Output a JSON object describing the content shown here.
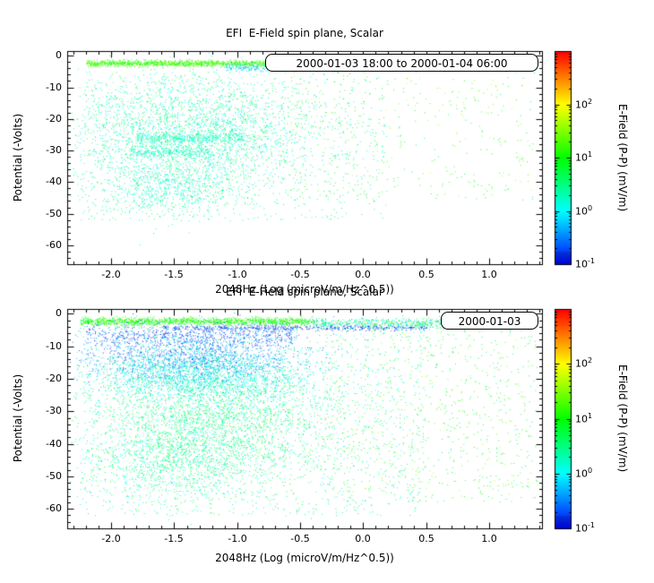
{
  "figure": {
    "background": "#ffffff",
    "note": "Two stacked scatter (density) plots of spacecraft potential vs wave power, rainbow log color scale; point clouds approximated by density clusters."
  },
  "chart_data": [
    {
      "type": "scatter",
      "title": "EFI  E-Field spin plane, Scalar",
      "legend": "2000-01-03 18:00 to 2000-01-04 06:00",
      "xlabel": "2048Hz (Log (microV/m/Hz^0.5))",
      "ylabel": "Potential (-Volts)",
      "xlim": [
        -2.35,
        1.42
      ],
      "ylim": [
        -66,
        1.5
      ],
      "xticks": [
        {
          "v": -2.0,
          "label": "-2.0"
        },
        {
          "v": -1.5,
          "label": "-1.5"
        },
        {
          "v": -1.0,
          "label": "-1.0"
        },
        {
          "v": -0.5,
          "label": "-0.5"
        },
        {
          "v": 0.0,
          "label": "0.0"
        },
        {
          "v": 0.5,
          "label": "0.5"
        },
        {
          "v": 1.0,
          "label": "1.0"
        }
      ],
      "yticks": [
        {
          "v": 0,
          "label": "0"
        },
        {
          "v": -10,
          "label": "-10"
        },
        {
          "v": -20,
          "label": "-20"
        },
        {
          "v": -30,
          "label": "-30"
        },
        {
          "v": -40,
          "label": "-40"
        },
        {
          "v": -50,
          "label": "-50"
        },
        {
          "v": -60,
          "label": "-60"
        }
      ],
      "colorbar": {
        "label": "E-Field (P-P) (mV/m)",
        "scale": "log",
        "log_range": [
          -1,
          3
        ],
        "ticks": [
          {
            "logv": 2,
            "base": "10",
            "exp": "2"
          },
          {
            "logv": 1,
            "base": "10",
            "exp": "1"
          },
          {
            "logv": 0,
            "base": "10",
            "exp": "0"
          },
          {
            "logv": -1,
            "base": "10",
            "exp": "-1"
          }
        ]
      },
      "clusters": [
        {
          "n": 1200,
          "x": {
            "d": "u",
            "a": -2.2,
            "b": -0.75
          },
          "y": {
            "d": "g",
            "m": -2.3,
            "s": 0.5
          },
          "lv": [
            0.8,
            1.6
          ]
        },
        {
          "n": 900,
          "x": {
            "d": "u",
            "a": -1.1,
            "b": 1.38
          },
          "y": {
            "d": "g",
            "m": -3.6,
            "s": 0.6
          },
          "lv": [
            -0.5,
            0.2
          ]
        },
        {
          "n": 2600,
          "x": {
            "d": "g",
            "m": -1.35,
            "s": 0.5
          },
          "y": {
            "d": "g",
            "m": -24,
            "s": 9
          },
          "lv": [
            -0.2,
            0.8
          ]
        },
        {
          "n": 350,
          "x": {
            "d": "u",
            "a": -1.8,
            "b": -0.95
          },
          "y": {
            "d": "g",
            "m": -26,
            "s": 0.8
          },
          "lv": [
            0.0,
            0.5
          ]
        },
        {
          "n": 250,
          "x": {
            "d": "u",
            "a": -1.85,
            "b": -1.2
          },
          "y": {
            "d": "g",
            "m": -30.5,
            "s": 0.8
          },
          "lv": [
            0.0,
            0.5
          ]
        },
        {
          "n": 700,
          "x": {
            "d": "g",
            "m": -1.55,
            "s": 0.28
          },
          "y": {
            "d": "g",
            "m": -42,
            "s": 4.5
          },
          "lv": [
            -0.1,
            0.6
          ]
        },
        {
          "n": 350,
          "x": {
            "d": "u",
            "a": -0.6,
            "b": 1.35
          },
          "y": {
            "d": "u",
            "a": -46,
            "b": -6
          },
          "lv": [
            0.5,
            1.8
          ]
        },
        {
          "n": 900,
          "x": {
            "d": "u",
            "a": -2.25,
            "b": 0.2
          },
          "y": {
            "d": "u",
            "a": -52,
            "b": -5
          },
          "lv": [
            0.0,
            0.9
          ]
        }
      ]
    },
    {
      "type": "scatter",
      "title": "EFI  E-Field spin plane, Scalar",
      "legend": "2000-01-03",
      "xlabel": "2048Hz (Log (microV/m/Hz^0.5))",
      "ylabel": "Potential (-Volts)",
      "xlim": [
        -2.35,
        1.42
      ],
      "ylim": [
        -66,
        1.5
      ],
      "xticks": [
        {
          "v": -2.0,
          "label": "-2.0"
        },
        {
          "v": -1.5,
          "label": "-1.5"
        },
        {
          "v": -1.0,
          "label": "-1.0"
        },
        {
          "v": -0.5,
          "label": "-0.5"
        },
        {
          "v": 0.0,
          "label": "0.0"
        },
        {
          "v": 0.5,
          "label": "0.5"
        },
        {
          "v": 1.0,
          "label": "1.0"
        }
      ],
      "yticks": [
        {
          "v": 0,
          "label": "0"
        },
        {
          "v": -10,
          "label": "-10"
        },
        {
          "v": -20,
          "label": "-20"
        },
        {
          "v": -30,
          "label": "-30"
        },
        {
          "v": -40,
          "label": "-40"
        },
        {
          "v": -50,
          "label": "-50"
        },
        {
          "v": -60,
          "label": "-60"
        }
      ],
      "colorbar": {
        "label": "E-Field (P-P) (mV/m)",
        "scale": "log",
        "log_range": [
          -1,
          3
        ],
        "ticks": [
          {
            "logv": 2,
            "base": "10",
            "exp": "2"
          },
          {
            "logv": 1,
            "base": "10",
            "exp": "1"
          },
          {
            "logv": 0,
            "base": "10",
            "exp": "0"
          },
          {
            "logv": -1,
            "base": "10",
            "exp": "-1"
          }
        ]
      },
      "clusters": [
        {
          "n": 1500,
          "x": {
            "d": "u",
            "a": -2.25,
            "b": -0.4
          },
          "y": {
            "d": "g",
            "m": -2.2,
            "s": 0.6
          },
          "lv": [
            0.6,
            1.5
          ]
        },
        {
          "n": 900,
          "x": {
            "d": "u",
            "a": -0.4,
            "b": 1.38
          },
          "y": {
            "d": "g",
            "m": -2.8,
            "s": 0.8
          },
          "lv": [
            -0.5,
            1.2
          ]
        },
        {
          "n": 400,
          "x": {
            "d": "u",
            "a": -1.6,
            "b": 0.5
          },
          "y": {
            "d": "g",
            "m": -4.2,
            "s": 0.4
          },
          "lv": [
            -1.0,
            -0.5
          ]
        },
        {
          "n": 700,
          "x": {
            "d": "u",
            "a": -2.2,
            "b": -0.55
          },
          "y": {
            "d": "g",
            "m": -6.5,
            "s": 2.0
          },
          "lv": [
            -1.0,
            -0.3
          ]
        },
        {
          "n": 1300,
          "x": {
            "d": "g",
            "m": -1.35,
            "s": 0.45
          },
          "y": {
            "d": "g",
            "m": -13,
            "s": 4
          },
          "lv": [
            -0.9,
            -0.1
          ]
        },
        {
          "n": 1800,
          "x": {
            "d": "g",
            "m": -1.3,
            "s": 0.45
          },
          "y": {
            "d": "g",
            "m": -19,
            "s": 4
          },
          "lv": [
            -0.3,
            0.4
          ]
        },
        {
          "n": 2400,
          "x": {
            "d": "g",
            "m": -1.2,
            "s": 0.5
          },
          "y": {
            "d": "g",
            "m": -33,
            "s": 9
          },
          "lv": [
            0.0,
            1.0
          ]
        },
        {
          "n": 900,
          "x": {
            "d": "g",
            "m": -1.5,
            "s": 0.35
          },
          "y": {
            "d": "g",
            "m": -46,
            "s": 6
          },
          "lv": [
            0.0,
            0.8
          ]
        },
        {
          "n": 800,
          "x": {
            "d": "u",
            "a": -0.3,
            "b": 1.38
          },
          "y": {
            "d": "u",
            "a": -58,
            "b": -3
          },
          "lv": [
            0.3,
            1.7
          ]
        },
        {
          "n": 1400,
          "x": {
            "d": "u",
            "a": -2.25,
            "b": 0.5
          },
          "y": {
            "d": "u",
            "a": -62,
            "b": -3
          },
          "lv": [
            -0.2,
            0.9
          ]
        }
      ]
    }
  ]
}
